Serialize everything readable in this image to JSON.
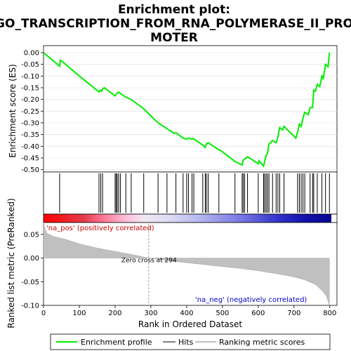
{
  "chart_data": {
    "type": "line",
    "title_line1": "Enrichment plot:",
    "title_line2": "GO_TRANSCRIPTION_FROM_RNA_POLYMERASE_II_PRO",
    "title_line3": "MOTER",
    "es_panel": {
      "ylabel": "Enrichment score (ES)",
      "ylim": [
        -0.51,
        0.03
      ],
      "yticks": [
        0.0,
        -0.05,
        -0.1,
        -0.15,
        -0.2,
        -0.25,
        -0.3,
        -0.35,
        -0.4,
        -0.45,
        -0.5
      ],
      "ytick_labels": [
        "0.00",
        "-0.05",
        "-0.10",
        "-0.15",
        "-0.20",
        "-0.25",
        "-0.30",
        "-0.35",
        "-0.40",
        "-0.45",
        "-0.50"
      ],
      "series_name": "Enrichment profile",
      "color": "#00ee00",
      "points": [
        [
          0,
          0.0
        ],
        [
          45,
          -0.058
        ],
        [
          47,
          -0.032
        ],
        [
          50,
          -0.035
        ],
        [
          100,
          -0.1
        ],
        [
          155,
          -0.168
        ],
        [
          158,
          -0.16
        ],
        [
          162,
          -0.165
        ],
        [
          165,
          -0.155
        ],
        [
          170,
          -0.15
        ],
        [
          200,
          -0.185
        ],
        [
          203,
          -0.178
        ],
        [
          206,
          -0.172
        ],
        [
          210,
          -0.169
        ],
        [
          215,
          -0.175
        ],
        [
          230,
          -0.19
        ],
        [
          245,
          -0.2
        ],
        [
          280,
          -0.24
        ],
        [
          320,
          -0.3
        ],
        [
          345,
          -0.325
        ],
        [
          365,
          -0.345
        ],
        [
          370,
          -0.342
        ],
        [
          390,
          -0.365
        ],
        [
          400,
          -0.37
        ],
        [
          405,
          -0.365
        ],
        [
          415,
          -0.37
        ],
        [
          420,
          -0.368
        ],
        [
          445,
          -0.395
        ],
        [
          452,
          -0.405
        ],
        [
          455,
          -0.39
        ],
        [
          460,
          -0.385
        ],
        [
          490,
          -0.415
        ],
        [
          495,
          -0.418
        ],
        [
          535,
          -0.465
        ],
        [
          555,
          -0.48
        ],
        [
          558,
          -0.46
        ],
        [
          562,
          -0.455
        ],
        [
          570,
          -0.445
        ],
        [
          600,
          -0.475
        ],
        [
          602,
          -0.462
        ],
        [
          615,
          -0.485
        ],
        [
          618,
          -0.465
        ],
        [
          622,
          -0.44
        ],
        [
          626,
          -0.43
        ],
        [
          630,
          -0.39
        ],
        [
          635,
          -0.385
        ],
        [
          640,
          -0.375
        ],
        [
          650,
          -0.385
        ],
        [
          655,
          -0.36
        ],
        [
          660,
          -0.32
        ],
        [
          668,
          -0.33
        ],
        [
          672,
          -0.315
        ],
        [
          705,
          -0.365
        ],
        [
          710,
          -0.34
        ],
        [
          715,
          -0.305
        ],
        [
          720,
          -0.315
        ],
        [
          725,
          -0.28
        ],
        [
          730,
          -0.255
        ],
        [
          740,
          -0.265
        ],
        [
          745,
          -0.235
        ],
        [
          752,
          -0.235
        ],
        [
          755,
          -0.16
        ],
        [
          760,
          -0.165
        ],
        [
          765,
          -0.135
        ],
        [
          772,
          -0.145
        ],
        [
          778,
          -0.1
        ],
        [
          782,
          -0.11
        ],
        [
          788,
          -0.05
        ],
        [
          795,
          -0.06
        ],
        [
          799,
          0.0
        ]
      ]
    },
    "hits": [
      45,
      155,
      160,
      165,
      200,
      203,
      206,
      210,
      215,
      230,
      245,
      280,
      320,
      345,
      370,
      390,
      400,
      405,
      415,
      420,
      445,
      452,
      455,
      460,
      490,
      535,
      555,
      558,
      562,
      570,
      600,
      615,
      618,
      622,
      626,
      630,
      640,
      650,
      655,
      660,
      672,
      710,
      715,
      720,
      725,
      730,
      745,
      752,
      755,
      765,
      778,
      788,
      799
    ],
    "ranked_panel": {
      "ylabel_line1": "Ranked list metric (PreRanked)",
      "ylim": [
        -0.1,
        0.075
      ],
      "yticks": [
        0.05,
        0.0,
        -0.05,
        -0.1
      ],
      "ytick_labels": [
        "0.05",
        "0.00",
        "-0.05",
        "-0.10"
      ],
      "series_name": "Ranking metric scores",
      "fill_color": "#c0c0c0",
      "points": [
        [
          0,
          0.075
        ],
        [
          5,
          0.06
        ],
        [
          10,
          0.052
        ],
        [
          30,
          0.045
        ],
        [
          60,
          0.04
        ],
        [
          100,
          0.03
        ],
        [
          150,
          0.021
        ],
        [
          200,
          0.014
        ],
        [
          250,
          0.007
        ],
        [
          294,
          0.0
        ],
        [
          350,
          -0.006
        ],
        [
          400,
          -0.01
        ],
        [
          450,
          -0.014
        ],
        [
          500,
          -0.018
        ],
        [
          550,
          -0.022
        ],
        [
          600,
          -0.027
        ],
        [
          650,
          -0.033
        ],
        [
          700,
          -0.04
        ],
        [
          730,
          -0.046
        ],
        [
          760,
          -0.056
        ],
        [
          780,
          -0.07
        ],
        [
          790,
          -0.08
        ],
        [
          799,
          -0.1
        ]
      ],
      "zero_cross_label": "Zero cross at 294",
      "zero_cross_x": 294,
      "pos_label": "'na_pos' (positively correlated)",
      "neg_label": "'na_neg' (negatively correlated)",
      "pos_label_color": "#cc0000",
      "neg_label_color": "#0000cc"
    },
    "x_axis": {
      "xlabel": "Rank in Ordered Dataset",
      "xlim": [
        0,
        820
      ],
      "xticks": [
        0,
        100,
        200,
        300,
        400,
        500,
        600,
        700,
        800
      ],
      "xtick_labels": [
        "0",
        "100",
        "200",
        "300",
        "400",
        "500",
        "600",
        "700",
        "800"
      ]
    },
    "legend": {
      "placement": "bottom",
      "entries": [
        {
          "label": "Enrichment profile",
          "color": "#00ee00"
        },
        {
          "label": "Hits",
          "color": "#000000"
        },
        {
          "label": "Ranking metric scores",
          "color": "#c0c0c0"
        }
      ]
    }
  }
}
